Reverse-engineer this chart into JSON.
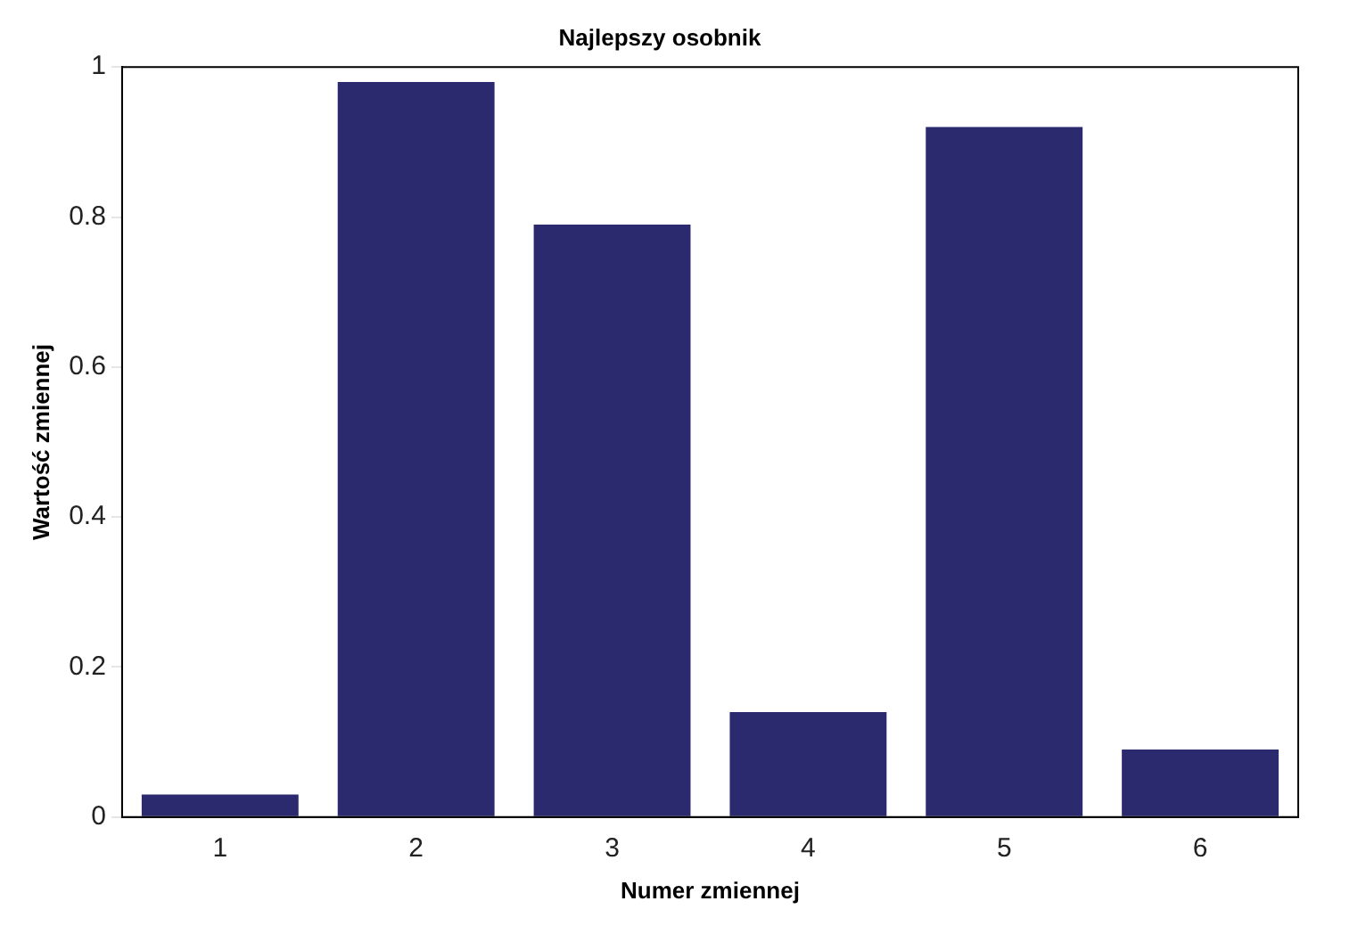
{
  "chart_data": {
    "type": "bar",
    "title": "Najlepszy osobnik",
    "xlabel": "Numer zmiennej",
    "ylabel": "Wartość zmiennej",
    "categories": [
      "1",
      "2",
      "3",
      "4",
      "5",
      "6"
    ],
    "values": [
      0.03,
      0.98,
      0.79,
      0.14,
      0.92,
      0.09
    ],
    "color": "#2b2a6e",
    "ylim": [
      0,
      1
    ],
    "yticks": [
      0,
      0.2,
      0.4,
      0.6,
      0.8,
      1
    ],
    "grid": false,
    "legend": false
  }
}
